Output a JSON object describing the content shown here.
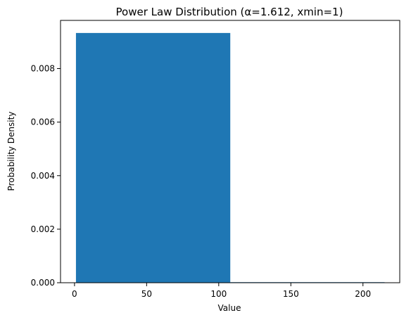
{
  "chart_data": {
    "type": "bar",
    "title": "Power Law Distribution (α=1.612, xmin=1)",
    "xlabel": "Value",
    "ylabel": "Probability Density",
    "xlim": [
      -9.7,
      225.5
    ],
    "ylim": [
      0,
      0.0098
    ],
    "grid": false,
    "xticks": [
      0,
      50,
      100,
      150,
      200
    ],
    "xtick_labels": [
      "0",
      "50",
      "100",
      "150",
      "200"
    ],
    "yticks": [
      0,
      0.002,
      0.004,
      0.006,
      0.008
    ],
    "ytick_labels": [
      "0.000",
      "0.002",
      "0.004",
      "0.006",
      "0.008"
    ],
    "bins": [
      {
        "x0": 1,
        "x1": 108,
        "value": 0.00933
      },
      {
        "x0": 108,
        "x1": 215,
        "value": 2e-05
      }
    ],
    "colors": {
      "bar": "#1f77b4"
    }
  }
}
